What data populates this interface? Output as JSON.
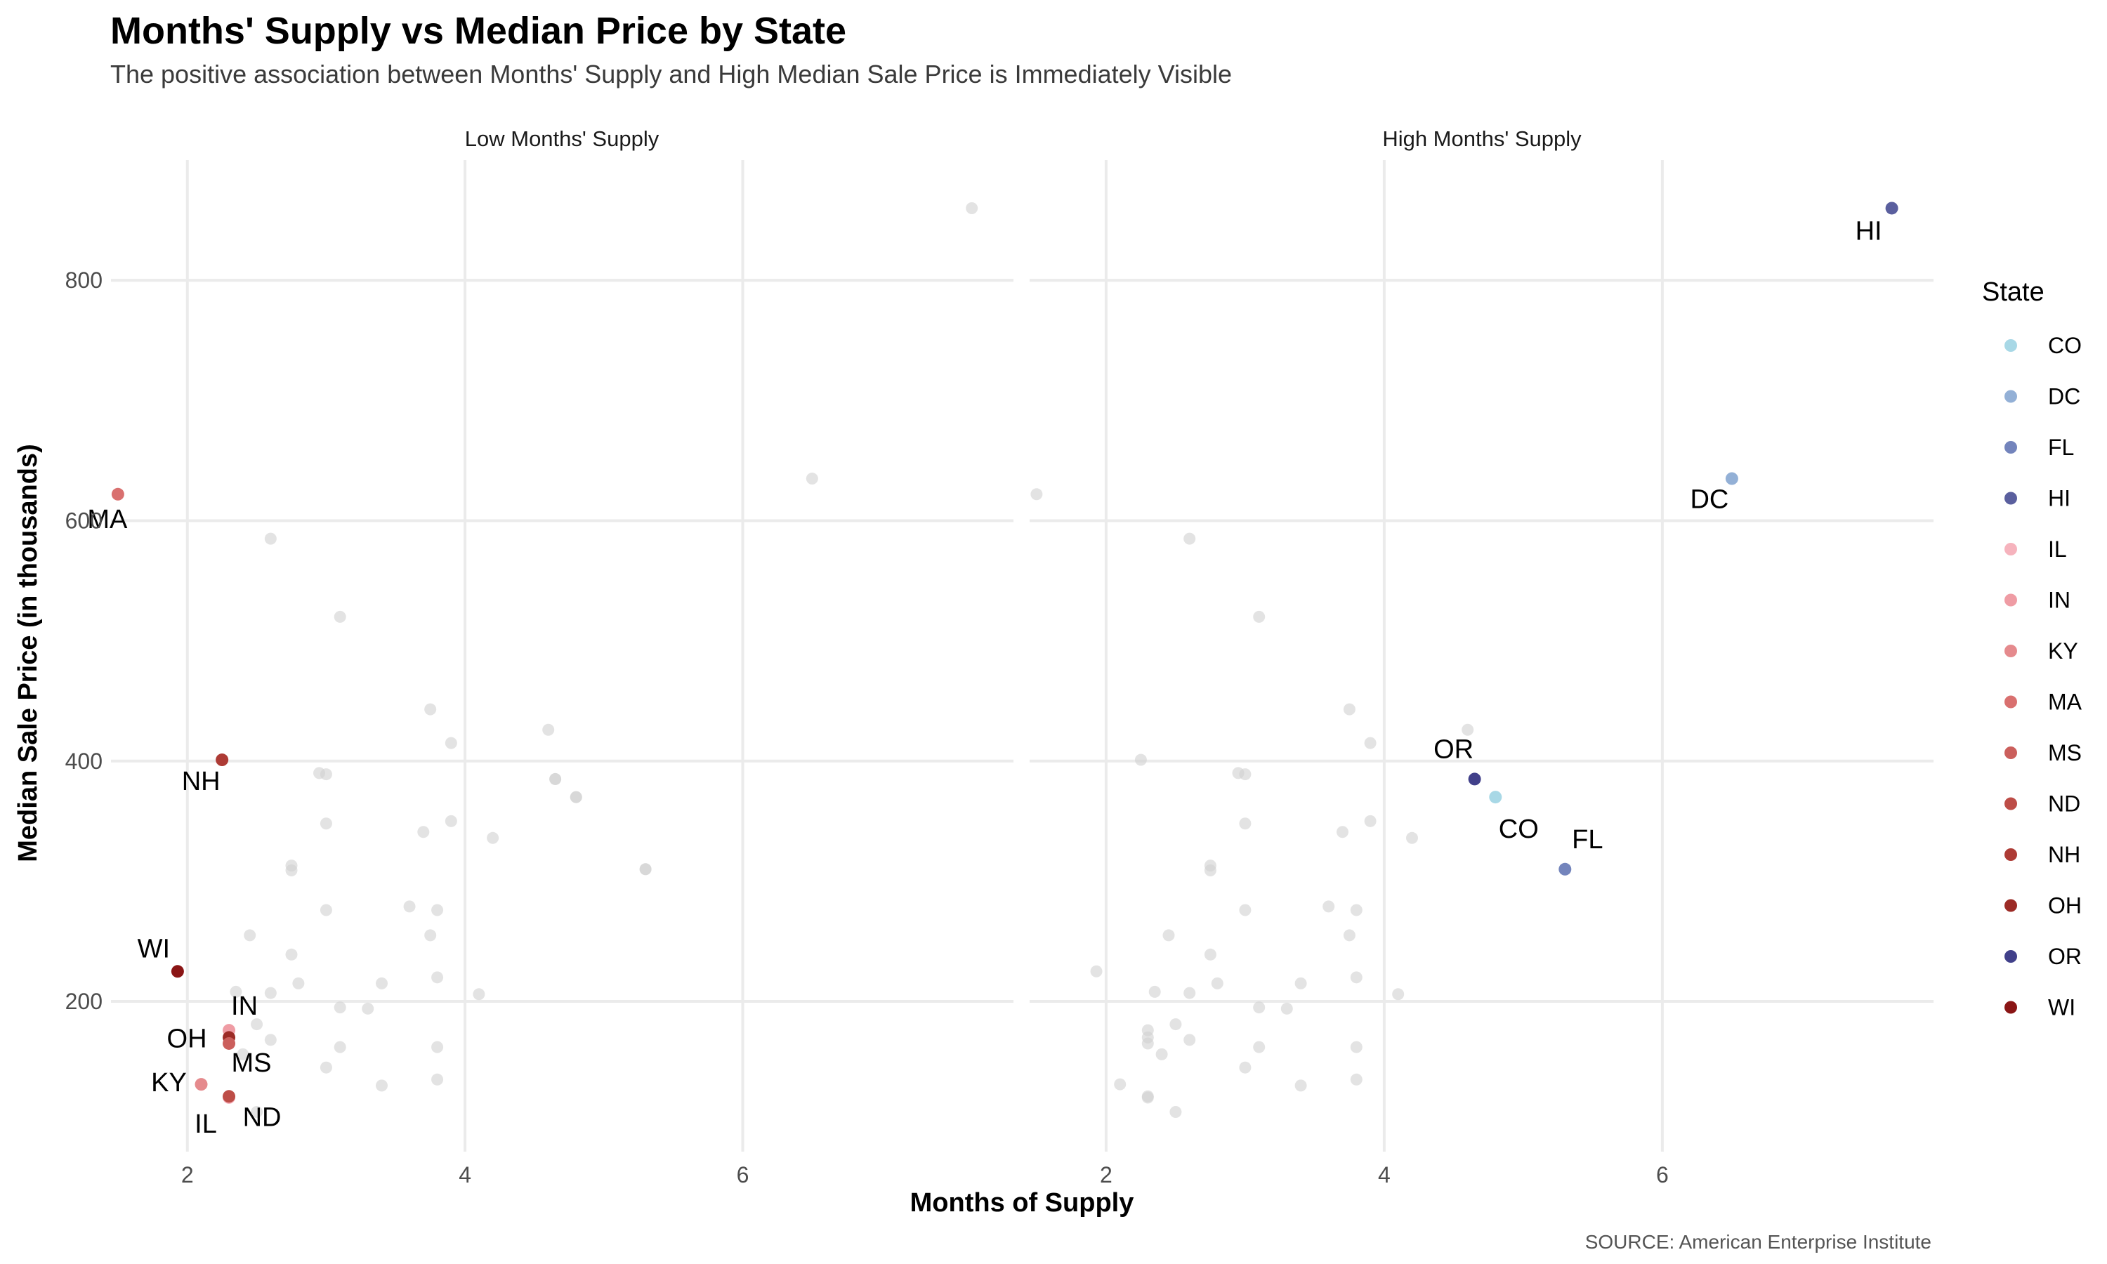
{
  "title": "Months' Supply vs Median Price by State",
  "subtitle": "The positive association between Months' Supply and High Median Sale Price is Immediately Visible",
  "caption": "SOURCE: American Enterprise Institute",
  "chart_data": {
    "type": "scatter",
    "xlabel": "Months of Supply",
    "ylabel": "Median Sale Price (in thousands)",
    "xlim": [
      1.45,
      7.95
    ],
    "ylim": [
      75,
      900
    ],
    "x_ticks": [
      2,
      4,
      6
    ],
    "y_ticks": [
      200,
      400,
      600,
      800
    ],
    "grid": true,
    "legend": {
      "title": "State",
      "position": "right"
    },
    "background_color": "#d0d0d0",
    "panels": [
      {
        "name": "Low Months' Supply",
        "highlight": [
          "MA",
          "NH",
          "WI",
          "IN",
          "OH",
          "MS",
          "KY",
          "IL",
          "ND"
        ]
      },
      {
        "name": "High Months' Supply",
        "highlight": [
          "HI",
          "DC",
          "OR",
          "CO",
          "FL"
        ]
      }
    ],
    "states": [
      {
        "label": "CO",
        "color": "#a8d8e6"
      },
      {
        "label": "DC",
        "color": "#93b0d6"
      },
      {
        "label": "FL",
        "color": "#7384bc"
      },
      {
        "label": "HI",
        "color": "#5a5f9e"
      },
      {
        "label": "IL",
        "color": "#f6b3bd"
      },
      {
        "label": "IN",
        "color": "#ef9ca4"
      },
      {
        "label": "KY",
        "color": "#e58a8d"
      },
      {
        "label": "MA",
        "color": "#d9706f"
      },
      {
        "label": "MS",
        "color": "#cb5f5c"
      },
      {
        "label": "ND",
        "color": "#bd4d47"
      },
      {
        "label": "NH",
        "color": "#ad3b35"
      },
      {
        "label": "OH",
        "color": "#9c2b26"
      },
      {
        "label": "OR",
        "color": "#41408a"
      },
      {
        "label": "WI",
        "color": "#8a1515"
      }
    ],
    "points": [
      {
        "state": "HI",
        "x": 7.65,
        "y": 860
      },
      {
        "state": "DC",
        "x": 6.5,
        "y": 635
      },
      {
        "state": "MA",
        "x": 1.5,
        "y": 622
      },
      {
        "state": "NH",
        "x": 2.25,
        "y": 401
      },
      {
        "state": "OR",
        "x": 4.65,
        "y": 385
      },
      {
        "state": "CO",
        "x": 4.8,
        "y": 370
      },
      {
        "state": "FL",
        "x": 5.3,
        "y": 310
      },
      {
        "state": "WI",
        "x": 1.93,
        "y": 225
      },
      {
        "state": "IN",
        "x": 2.3,
        "y": 176
      },
      {
        "state": "OH",
        "x": 2.3,
        "y": 170
      },
      {
        "state": "MS",
        "x": 2.3,
        "y": 165
      },
      {
        "state": "KY",
        "x": 2.1,
        "y": 131
      },
      {
        "state": "ND",
        "x": 2.3,
        "y": 121
      },
      {
        "state": "IL",
        "x": 2.3,
        "y": 120
      },
      {
        "x": 2.6,
        "y": 585
      },
      {
        "x": 3.1,
        "y": 520
      },
      {
        "x": 3.75,
        "y": 443
      },
      {
        "x": 4.6,
        "y": 426
      },
      {
        "x": 3.9,
        "y": 415
      },
      {
        "x": 2.95,
        "y": 390
      },
      {
        "x": 3.0,
        "y": 389
      },
      {
        "x": 4.65,
        "y": 385
      },
      {
        "x": 4.8,
        "y": 370
      },
      {
        "x": 3.9,
        "y": 350
      },
      {
        "x": 3.0,
        "y": 348
      },
      {
        "x": 3.7,
        "y": 341
      },
      {
        "x": 4.2,
        "y": 336
      },
      {
        "x": 2.75,
        "y": 313
      },
      {
        "x": 2.75,
        "y": 309
      },
      {
        "x": 5.3,
        "y": 310
      },
      {
        "x": 3.6,
        "y": 279
      },
      {
        "x": 3.0,
        "y": 276
      },
      {
        "x": 3.8,
        "y": 276
      },
      {
        "x": 2.45,
        "y": 255
      },
      {
        "x": 3.75,
        "y": 255
      },
      {
        "x": 2.75,
        "y": 239
      },
      {
        "x": 3.8,
        "y": 220
      },
      {
        "x": 2.8,
        "y": 215
      },
      {
        "x": 3.4,
        "y": 215
      },
      {
        "x": 2.35,
        "y": 208
      },
      {
        "x": 2.6,
        "y": 207
      },
      {
        "x": 4.1,
        "y": 206
      },
      {
        "x": 3.1,
        "y": 195
      },
      {
        "x": 3.3,
        "y": 194
      },
      {
        "x": 2.5,
        "y": 181
      },
      {
        "x": 2.6,
        "y": 168
      },
      {
        "x": 3.1,
        "y": 162
      },
      {
        "x": 3.8,
        "y": 162
      },
      {
        "x": 2.4,
        "y": 156
      },
      {
        "x": 3.0,
        "y": 145
      },
      {
        "x": 3.8,
        "y": 135
      },
      {
        "x": 3.4,
        "y": 130
      },
      {
        "x": 2.5,
        "y": 108
      }
    ]
  }
}
